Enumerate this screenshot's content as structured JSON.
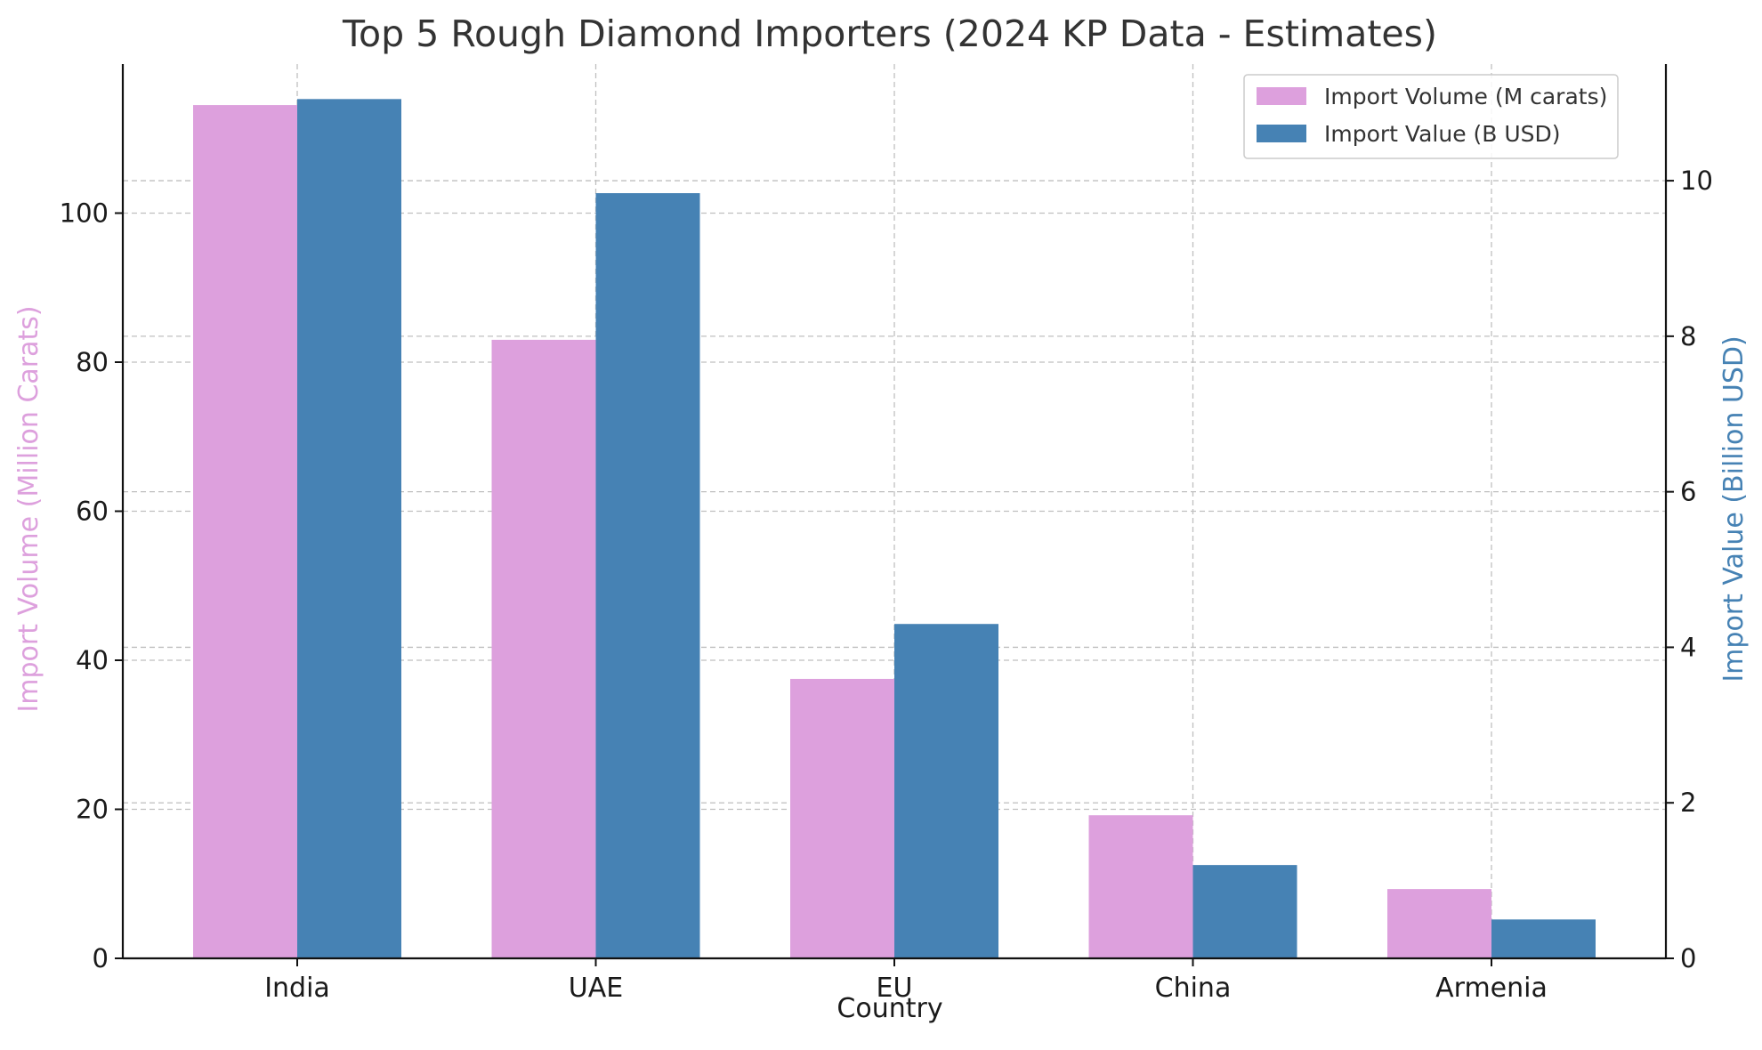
{
  "chart_data": {
    "type": "bar",
    "title": "Top 5 Rough Diamond Importers (2024 KP Data - Estimates)",
    "xlabel": "Country",
    "ylabel_left": "Import Volume (Million Carats)",
    "ylabel_right": "Import Value (Billion USD)",
    "categories": [
      "India",
      "UAE",
      "EU",
      "China",
      "Armenia"
    ],
    "ylim_left": [
      0,
      120
    ],
    "ylim_right": [
      0,
      11.5
    ],
    "yticks_left": [
      0,
      20,
      40,
      60,
      80,
      100
    ],
    "yticks_right": [
      0,
      2,
      4,
      6,
      8,
      10
    ],
    "grid": true,
    "legend_position": "top-right",
    "series": [
      {
        "name": "Import Volume (M carats)",
        "axis": "left",
        "color": "#dda0dd",
        "values": [
          114.5,
          83,
          37.5,
          19.2,
          9.3
        ]
      },
      {
        "name": "Import Value (B USD)",
        "axis": "right",
        "color": "#4682b4",
        "values": [
          11.05,
          9.84,
          4.3,
          1.2,
          0.5
        ]
      }
    ]
  }
}
